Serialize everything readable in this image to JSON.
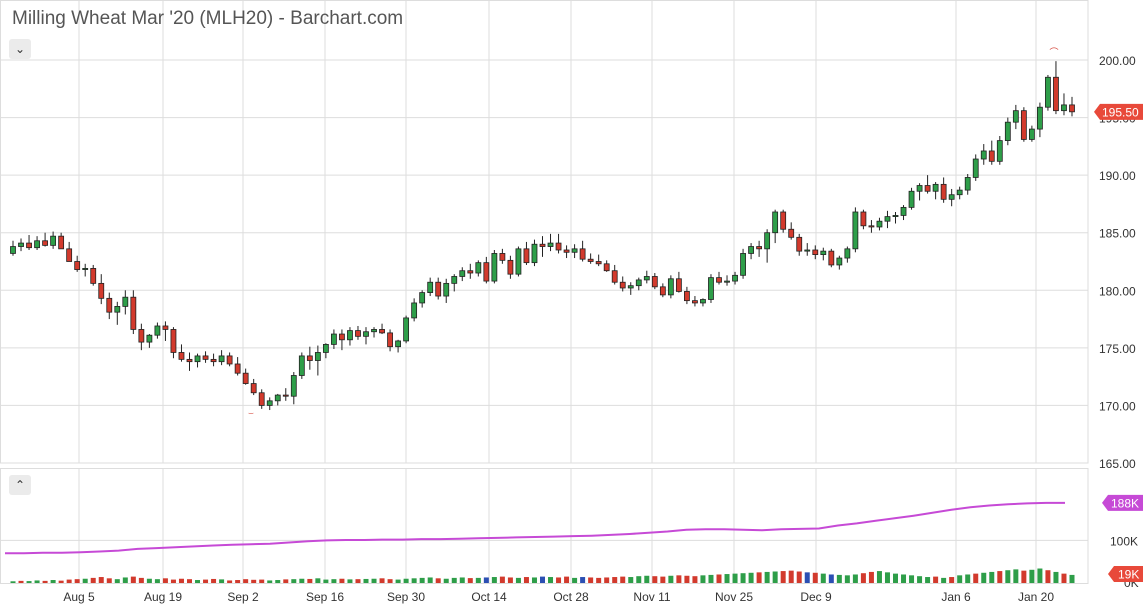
{
  "title": "Milling Wheat Mar '20 (MLH20) - Barchart.com",
  "controls": {
    "collapse_main_icon": "chevron-down-icon",
    "collapse_main_glyph": "⌄",
    "collapse_volume_icon": "chevron-up-icon",
    "collapse_volume_glyph": "⌃"
  },
  "colors": {
    "up": "#2e9e49",
    "down": "#d23a2d",
    "neutral": "#2b4fb3",
    "open_interest": "#c64ad6",
    "last_price_tag": "#e8493a",
    "grid": "#dddddd"
  },
  "chart_data": [
    {
      "type": "candlestick",
      "title": "Milling Wheat Mar '20 (MLH20) - Barchart.com",
      "ylim": [
        165,
        201.5
      ],
      "y_ticks": [
        "200.00",
        "195.00",
        "190.00",
        "185.00",
        "180.00",
        "175.00",
        "170.00",
        "165.00"
      ],
      "x_ticks": [
        "Aug 5",
        "Aug 19",
        "Sep 2",
        "Sep 16",
        "Sep 30",
        "Oct 14",
        "Oct 28",
        "Nov 11",
        "Nov 25",
        "Dec 9",
        "Jan 6",
        "Jan 20"
      ],
      "grid": true,
      "last_price": "195.50",
      "candles": [
        [
          183.2,
          184.3,
          183.0,
          183.8
        ],
        [
          183.8,
          184.5,
          183.4,
          184.1
        ],
        [
          184.1,
          184.8,
          183.5,
          183.7
        ],
        [
          183.7,
          184.7,
          183.5,
          184.3
        ],
        [
          184.3,
          185.0,
          183.8,
          183.9
        ],
        [
          183.9,
          185.1,
          183.6,
          184.7
        ],
        [
          184.7,
          185.0,
          183.7,
          183.6
        ],
        [
          183.6,
          184.2,
          182.5,
          182.5
        ],
        [
          182.5,
          183.0,
          181.6,
          181.8
        ],
        [
          181.8,
          182.3,
          181.2,
          181.9
        ],
        [
          181.9,
          182.2,
          180.4,
          180.6
        ],
        [
          180.6,
          181.4,
          178.8,
          179.3
        ],
        [
          179.3,
          179.8,
          177.5,
          178.1
        ],
        [
          178.1,
          179.0,
          177.0,
          178.6
        ],
        [
          178.6,
          180.0,
          177.9,
          179.4
        ],
        [
          179.4,
          180.0,
          176.2,
          176.6
        ],
        [
          176.6,
          177.1,
          174.8,
          175.5
        ],
        [
          175.5,
          176.2,
          175.0,
          176.1
        ],
        [
          176.1,
          177.2,
          175.8,
          176.9
        ],
        [
          176.9,
          177.3,
          175.6,
          176.6
        ],
        [
          176.6,
          176.8,
          174.1,
          174.6
        ],
        [
          174.6,
          175.3,
          173.8,
          174.0
        ],
        [
          174.0,
          174.6,
          173.0,
          173.8
        ],
        [
          173.8,
          174.5,
          173.3,
          174.3
        ],
        [
          174.3,
          174.7,
          173.7,
          174.0
        ],
        [
          174.0,
          174.5,
          173.4,
          173.8
        ],
        [
          173.8,
          174.8,
          173.5,
          174.3
        ],
        [
          174.3,
          174.6,
          173.4,
          173.6
        ],
        [
          173.6,
          174.2,
          172.6,
          172.8
        ],
        [
          172.8,
          173.2,
          171.8,
          171.9
        ],
        [
          171.9,
          172.3,
          170.9,
          171.1
        ],
        [
          171.1,
          171.4,
          169.7,
          170.0
        ],
        [
          170.0,
          170.7,
          169.6,
          170.4
        ],
        [
          170.4,
          171.0,
          170.0,
          170.9
        ],
        [
          170.9,
          171.5,
          170.4,
          170.8
        ],
        [
          170.8,
          172.9,
          170.1,
          172.6
        ],
        [
          172.6,
          174.6,
          172.3,
          174.3
        ],
        [
          174.3,
          175.1,
          173.1,
          173.9
        ],
        [
          173.9,
          175.2,
          172.6,
          174.6
        ],
        [
          174.6,
          175.4,
          174.1,
          175.3
        ],
        [
          175.3,
          176.6,
          174.9,
          176.2
        ],
        [
          176.2,
          176.6,
          174.8,
          175.7
        ],
        [
          175.7,
          176.8,
          175.2,
          176.5
        ],
        [
          176.5,
          176.9,
          175.7,
          176.0
        ],
        [
          176.0,
          176.8,
          175.3,
          176.4
        ],
        [
          176.4,
          176.8,
          175.9,
          176.6
        ],
        [
          176.6,
          177.1,
          176.2,
          176.3
        ],
        [
          176.3,
          176.6,
          174.7,
          175.1
        ],
        [
          175.1,
          175.7,
          174.6,
          175.6
        ],
        [
          175.6,
          177.8,
          175.4,
          177.6
        ],
        [
          177.6,
          179.3,
          177.3,
          178.9
        ],
        [
          178.9,
          180.0,
          178.5,
          179.8
        ],
        [
          179.8,
          181.1,
          179.5,
          180.7
        ],
        [
          180.7,
          181.1,
          179.2,
          179.5
        ],
        [
          179.5,
          181.0,
          178.9,
          180.6
        ],
        [
          180.6,
          181.4,
          179.9,
          181.2
        ],
        [
          181.2,
          182.0,
          180.8,
          181.7
        ],
        [
          181.7,
          182.3,
          181.0,
          181.5
        ],
        [
          181.5,
          182.6,
          181.2,
          182.4
        ],
        [
          182.4,
          182.9,
          180.6,
          180.8
        ],
        [
          180.8,
          183.5,
          180.6,
          183.2
        ],
        [
          183.2,
          183.6,
          182.3,
          182.6
        ],
        [
          182.6,
          183.0,
          181.0,
          181.4
        ],
        [
          181.4,
          183.8,
          181.2,
          183.6
        ],
        [
          183.6,
          184.2,
          182.2,
          182.4
        ],
        [
          182.4,
          184.4,
          182.1,
          184.0
        ],
        [
          184.0,
          184.7,
          182.9,
          183.8
        ],
        [
          183.8,
          184.9,
          183.4,
          184.1
        ],
        [
          184.1,
          184.9,
          183.2,
          183.5
        ],
        [
          183.5,
          183.9,
          182.8,
          183.3
        ],
        [
          183.3,
          184.0,
          182.8,
          183.6
        ],
        [
          183.6,
          184.3,
          182.5,
          182.7
        ],
        [
          182.7,
          183.2,
          182.3,
          182.5
        ],
        [
          182.5,
          183.1,
          182.1,
          182.3
        ],
        [
          182.3,
          182.6,
          181.6,
          181.7
        ],
        [
          181.7,
          182.2,
          180.5,
          180.7
        ],
        [
          180.7,
          181.2,
          179.9,
          180.2
        ],
        [
          180.2,
          180.7,
          179.6,
          180.4
        ],
        [
          180.4,
          181.1,
          180.0,
          180.9
        ],
        [
          180.9,
          181.7,
          180.6,
          181.2
        ],
        [
          181.2,
          181.5,
          180.1,
          180.3
        ],
        [
          180.3,
          180.6,
          179.4,
          179.6
        ],
        [
          179.6,
          181.3,
          179.3,
          181.0
        ],
        [
          181.0,
          181.6,
          179.8,
          179.9
        ],
        [
          179.9,
          180.3,
          178.8,
          179.1
        ],
        [
          179.1,
          179.5,
          178.6,
          178.9
        ],
        [
          178.9,
          179.3,
          178.6,
          179.2
        ],
        [
          179.2,
          181.4,
          178.9,
          181.1
        ],
        [
          181.1,
          181.6,
          180.5,
          180.7
        ],
        [
          180.7,
          181.3,
          180.4,
          180.8
        ],
        [
          180.8,
          181.6,
          180.5,
          181.3
        ],
        [
          181.3,
          183.6,
          181.0,
          183.2
        ],
        [
          183.2,
          184.1,
          182.7,
          183.8
        ],
        [
          183.8,
          184.3,
          182.9,
          183.6
        ],
        [
          183.6,
          185.3,
          182.4,
          185.0
        ],
        [
          185.0,
          187.0,
          184.1,
          186.8
        ],
        [
          186.8,
          187.0,
          185.0,
          185.3
        ],
        [
          185.3,
          185.9,
          184.4,
          184.6
        ],
        [
          184.6,
          184.9,
          183.0,
          183.4
        ],
        [
          183.4,
          184.1,
          183.0,
          183.5
        ],
        [
          183.5,
          183.9,
          182.7,
          183.1
        ],
        [
          183.1,
          183.7,
          182.6,
          183.4
        ],
        [
          183.4,
          183.6,
          182.0,
          182.2
        ],
        [
          182.2,
          183.0,
          181.8,
          182.8
        ],
        [
          182.8,
          183.8,
          182.4,
          183.6
        ],
        [
          183.6,
          187.2,
          183.3,
          186.8
        ],
        [
          186.8,
          187.0,
          185.3,
          185.6
        ],
        [
          185.6,
          186.1,
          185.0,
          185.5
        ],
        [
          185.5,
          186.3,
          185.2,
          186.0
        ],
        [
          186.0,
          186.9,
          185.4,
          186.4
        ],
        [
          186.4,
          186.8,
          185.8,
          186.5
        ],
        [
          186.5,
          187.4,
          186.1,
          187.2
        ],
        [
          187.2,
          188.9,
          187.0,
          188.6
        ],
        [
          188.6,
          189.3,
          187.8,
          189.1
        ],
        [
          189.1,
          190.0,
          188.4,
          188.6
        ],
        [
          188.6,
          189.4,
          187.9,
          189.2
        ],
        [
          189.2,
          189.8,
          187.6,
          187.9
        ],
        [
          187.9,
          188.8,
          187.3,
          188.3
        ],
        [
          188.3,
          189.0,
          187.9,
          188.7
        ],
        [
          188.7,
          190.1,
          188.3,
          189.8
        ],
        [
          189.8,
          191.8,
          189.5,
          191.4
        ],
        [
          191.4,
          192.7,
          190.9,
          192.1
        ],
        [
          192.1,
          193.0,
          190.9,
          191.2
        ],
        [
          191.2,
          193.4,
          190.9,
          193.0
        ],
        [
          193.0,
          195.0,
          192.6,
          194.6
        ],
        [
          194.6,
          196.1,
          194.0,
          195.6
        ],
        [
          195.6,
          195.9,
          192.9,
          193.1
        ],
        [
          193.1,
          194.3,
          192.9,
          194.0
        ],
        [
          194.0,
          196.3,
          193.3,
          195.9
        ],
        [
          195.9,
          198.7,
          195.6,
          198.5
        ],
        [
          198.5,
          199.9,
          195.3,
          195.6
        ],
        [
          195.6,
          197.1,
          195.2,
          196.1
        ],
        [
          196.1,
          196.8,
          195.1,
          195.5
        ]
      ]
    },
    {
      "type": "bar",
      "title": "",
      "ylim": [
        0,
        270000
      ],
      "y_ticks": [
        "100K",
        "0K"
      ],
      "last_value_label": "19K",
      "volume": [
        4000,
        5000,
        4500,
        6000,
        5000,
        7000,
        5500,
        8000,
        9000,
        10000,
        12000,
        14000,
        11000,
        9000,
        13000,
        15000,
        12000,
        10000,
        9000,
        11000,
        8000,
        10000,
        9000,
        7000,
        8000,
        9500,
        8500,
        6000,
        7000,
        9000,
        7500,
        8000,
        6000,
        7000,
        8500,
        9000,
        10000,
        9500,
        11000,
        8000,
        9000,
        10000,
        8500,
        9000,
        9500,
        10000,
        11000,
        9000,
        8000,
        10000,
        11000,
        12000,
        13000,
        11000,
        10000,
        12000,
        13000,
        11500,
        12000,
        13000,
        14000,
        15000,
        13000,
        12000,
        14000,
        13000,
        15000,
        14000,
        13000,
        15000,
        12000,
        14000,
        13000,
        12000,
        13000,
        14000,
        15000,
        14000,
        16000,
        17000,
        16000,
        15000,
        17000,
        18000,
        17000,
        16000,
        18000,
        19000,
        20000,
        21000,
        22000,
        23000,
        24000,
        25000,
        26000,
        27000,
        28000,
        29000,
        27000,
        25000,
        24000,
        22000,
        20000,
        19000,
        18000,
        20000,
        23000,
        26000,
        28000,
        25000,
        22000,
        20000,
        18000,
        16000,
        14000,
        15000,
        12000,
        14000,
        18000,
        20000,
        22000,
        24000,
        26000,
        28000,
        30000,
        32000,
        29000,
        31000,
        34000,
        30000,
        26000,
        22000,
        19000
      ],
      "volume_colors": [
        "g",
        "r",
        "g",
        "g",
        "r",
        "g",
        "r",
        "r",
        "r",
        "g",
        "r",
        "r",
        "r",
        "g",
        "g",
        "r",
        "r",
        "g",
        "g",
        "r",
        "r",
        "r",
        "r",
        "g",
        "r",
        "r",
        "g",
        "r",
        "r",
        "r",
        "r",
        "r",
        "g",
        "g",
        "r",
        "g",
        "g",
        "r",
        "g",
        "g",
        "g",
        "r",
        "g",
        "r",
        "g",
        "g",
        "r",
        "r",
        "g",
        "g",
        "g",
        "g",
        "g",
        "r",
        "g",
        "g",
        "g",
        "r",
        "g",
        "b",
        "g",
        "r",
        "r",
        "g",
        "r",
        "g",
        "b",
        "g",
        "r",
        "r",
        "g",
        "b",
        "r",
        "r",
        "r",
        "r",
        "r",
        "g",
        "g",
        "g",
        "r",
        "r",
        "g",
        "r",
        "r",
        "r",
        "g",
        "g",
        "r",
        "g",
        "g",
        "g",
        "g",
        "r",
        "g",
        "g",
        "r",
        "r",
        "r",
        "b",
        "r",
        "g",
        "b",
        "g",
        "g",
        "g",
        "r",
        "r",
        "g",
        "g",
        "g",
        "g",
        "g",
        "g",
        "g",
        "r",
        "g",
        "r",
        "g",
        "g",
        "r",
        "g",
        "g",
        "r",
        "g",
        "g",
        "r",
        "g",
        "g",
        "r",
        "g",
        "r",
        "g"
      ],
      "open_interest_line": {
        "name": "",
        "last_value_label": "188K",
        "values": [
          70000,
          70000,
          71000,
          71000,
          72000,
          74000,
          76000,
          80000,
          82000,
          84000,
          86000,
          88000,
          90000,
          91000,
          92000,
          95000,
          98000,
          100000,
          101000,
          101000,
          102000,
          102000,
          103000,
          103000,
          104000,
          105000,
          106000,
          107000,
          108000,
          109000,
          110000,
          111000,
          113000,
          115000,
          118000,
          121000,
          125000,
          126000,
          126000,
          125000,
          124000,
          126000,
          127000,
          128000,
          135000,
          140000,
          146000,
          152000,
          158000,
          165000,
          172000,
          178000,
          182000,
          185000,
          187000,
          188000,
          188000
        ]
      }
    }
  ]
}
